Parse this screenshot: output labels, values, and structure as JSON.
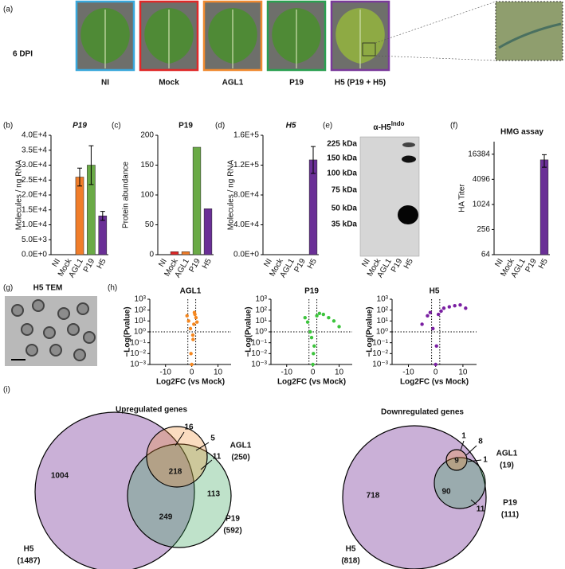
{
  "figure": {
    "panel_labels": [
      "(a)",
      "(b)",
      "(c)",
      "(d)",
      "(e)",
      "(f)",
      "(g)",
      "(h)",
      "(i)"
    ],
    "row_label": "6 DPI"
  },
  "photos": [
    {
      "label": "NI",
      "color": "#3aa8dc"
    },
    {
      "label": "Mock",
      "color": "#e02828"
    },
    {
      "label": "AGL1",
      "color": "#f08a30"
    },
    {
      "label": "P19",
      "color": "#2aa050"
    },
    {
      "label": "H5 (P19 + H5)",
      "color": "#7a3a9a"
    }
  ],
  "blot": {
    "title": "α-H5",
    "title_sup": "Indo",
    "markers": [
      "225 kDa",
      "150 kDa",
      "100 kDa",
      "75 kDa",
      "50 kDa",
      "35 kDa"
    ],
    "lanes": [
      "NI",
      "Mock",
      "AGL1",
      "P19",
      "H5"
    ]
  },
  "tem": {
    "title": "H5 TEM"
  },
  "chart_data": [
    {
      "type": "bar",
      "title": "P19",
      "title_italic": true,
      "ylabel": "Molecules / ng RNA",
      "categories": [
        "NI",
        "Mock",
        "AGL1",
        "P19",
        "H5"
      ],
      "values": [
        0,
        0,
        26000,
        30000,
        13000
      ],
      "errors": [
        null,
        null,
        3000,
        6500,
        1500
      ],
      "colors": [
        "#3aa8dc",
        "#e02828",
        "#f07d2a",
        "#6aaa46",
        "#6a2f96"
      ],
      "ylim": [
        0,
        40000
      ],
      "yticks": [
        {
          "value": 0,
          "label": "0.0E+0"
        },
        {
          "value": 5000,
          "label": "5.0E+3"
        },
        {
          "value": 10000,
          "label": "1.0E+4"
        },
        {
          "value": 15000,
          "label": "1.5E+4"
        },
        {
          "value": 20000,
          "label": "2.0E+4"
        },
        {
          "value": 25000,
          "label": "2.5E+4"
        },
        {
          "value": 30000,
          "label": "3.0E+4"
        },
        {
          "value": 35000,
          "label": "3.5E+4"
        },
        {
          "value": 40000,
          "label": "4.0E+4"
        }
      ]
    },
    {
      "type": "bar",
      "title": "P19",
      "title_italic": false,
      "ylabel": "Protein abundance",
      "categories": [
        "NI",
        "Mock",
        "AGL1",
        "P19",
        "H5"
      ],
      "values": [
        0,
        5,
        5,
        180,
        77
      ],
      "colors": [
        "#3aa8dc",
        "#e02828",
        "#f07d2a",
        "#6aaa46",
        "#6a2f96"
      ],
      "ylim": [
        0,
        200
      ],
      "yticks": [
        0,
        50,
        100,
        150,
        200
      ]
    },
    {
      "type": "bar",
      "title": "H5",
      "title_italic": true,
      "ylabel": "Molecules / ng RNA",
      "categories": [
        "NI",
        "Mock",
        "AGL1",
        "P19",
        "H5"
      ],
      "values": [
        0,
        0,
        0,
        0,
        127000
      ],
      "errors": [
        null,
        null,
        null,
        null,
        18000
      ],
      "colors": [
        "#3aa8dc",
        "#e02828",
        "#f07d2a",
        "#6aaa46",
        "#6a2f96"
      ],
      "ylim": [
        0,
        160000
      ],
      "yticks": [
        {
          "value": 0,
          "label": "0.0E+0"
        },
        {
          "value": 40000,
          "label": "4.0E+4"
        },
        {
          "value": 80000,
          "label": "8.0E+4"
        },
        {
          "value": 120000,
          "label": "1.2E+5"
        },
        {
          "value": 160000,
          "label": "1.6E+5"
        }
      ]
    },
    {
      "type": "bar",
      "title": "HMG assay",
      "title_italic": false,
      "ylabel": "HA Titer",
      "yscale": "log2",
      "categories": [
        "NI",
        "Mock",
        "AGL1",
        "P19",
        "H5"
      ],
      "values": [
        null,
        null,
        null,
        null,
        12000
      ],
      "errors": [
        null,
        null,
        null,
        null,
        4000
      ],
      "colors": [
        "#3aa8dc",
        "#e02828",
        "#f07d2a",
        "#6aaa46",
        "#6a2f96"
      ],
      "ylim": [
        64,
        32768
      ],
      "yticks": [
        64,
        256,
        1024,
        4096,
        16384
      ]
    },
    {
      "type": "scatter",
      "title": "AGL1",
      "xlabel": "Log2FC (vs Mock)",
      "ylabel": "−Log(Pvalue)",
      "color": "#f5871f",
      "x": [
        -1.8,
        -1.2,
        -0.5,
        0,
        0.4,
        0.8,
        1.2,
        1.6,
        2.0,
        -0.3,
        0.5,
        1.0
      ],
      "values": [
        30,
        10,
        2,
        0.001,
        0.5,
        5,
        40,
        20,
        8,
        0.01,
        0.2,
        60
      ],
      "xlim": [
        -16,
        15
      ],
      "xticks": [
        -10,
        0,
        10
      ],
      "ylim": [
        0.001,
        1000
      ],
      "yticks": [
        {
          "value": 1000,
          "label": "10³"
        },
        {
          "value": 100,
          "label": "10²"
        },
        {
          "value": 10,
          "label": "10¹"
        },
        {
          "value": 1,
          "label": "10⁰"
        },
        {
          "value": 0.1,
          "label": "10⁻¹"
        },
        {
          "value": 0.01,
          "label": "10⁻²"
        },
        {
          "value": 0.001,
          "label": "10⁻³"
        }
      ],
      "thresholds": {
        "x": [
          -1.5,
          1.5
        ],
        "y": 1
      }
    },
    {
      "type": "scatter",
      "title": "P19",
      "xlabel": "Log2FC (vs Mock)",
      "ylabel": "−Log(Pvalue)",
      "color": "#3cc43c",
      "x": [
        -3,
        -2,
        -1,
        0,
        0.5,
        1.5,
        2.5,
        4,
        6,
        8,
        10,
        0.2,
        -0.5
      ],
      "values": [
        20,
        8,
        1,
        0.001,
        0.05,
        30,
        50,
        40,
        20,
        10,
        3,
        0.01,
        0.3
      ],
      "xlim": [
        -16,
        15
      ],
      "xticks": [
        -10,
        0,
        10
      ],
      "ylim": [
        0.001,
        1000
      ],
      "yticks": [
        {
          "value": 1000,
          "label": "10³"
        },
        {
          "value": 100,
          "label": "10²"
        },
        {
          "value": 10,
          "label": "10¹"
        },
        {
          "value": 1,
          "label": "10⁰"
        },
        {
          "value": 0.1,
          "label": "10⁻¹"
        },
        {
          "value": 0.01,
          "label": "10⁻²"
        },
        {
          "value": 0.001,
          "label": "10⁻³"
        }
      ],
      "thresholds": {
        "x": [
          -1.5,
          1.5
        ],
        "y": 1
      }
    },
    {
      "type": "scatter",
      "title": "H5",
      "xlabel": "Log2FC (vs Mock)",
      "ylabel": "−Log(Pvalue)",
      "color": "#7a1fa2",
      "x": [
        -5,
        -3,
        -2,
        -1,
        0,
        1,
        2,
        3,
        5,
        7,
        9,
        11,
        0.3
      ],
      "values": [
        5,
        30,
        60,
        2,
        0.001,
        40,
        80,
        150,
        200,
        250,
        300,
        150,
        0.05
      ],
      "xlim": [
        -16,
        15
      ],
      "xticks": [
        -10,
        0,
        10
      ],
      "ylim": [
        0.001,
        1000
      ],
      "yticks": [
        {
          "value": 1000,
          "label": "10³"
        },
        {
          "value": 100,
          "label": "10²"
        },
        {
          "value": 10,
          "label": "10¹"
        },
        {
          "value": 1,
          "label": "10⁰"
        },
        {
          "value": 0.1,
          "label": "10⁻¹"
        },
        {
          "value": 0.01,
          "label": "10⁻²"
        },
        {
          "value": 0.001,
          "label": "10⁻³"
        }
      ],
      "thresholds": {
        "x": [
          -1.5,
          1.5
        ],
        "y": 1
      }
    }
  ],
  "venn": [
    {
      "title": "Upregulated genes",
      "sets": [
        {
          "name": "H5",
          "count": "(1487)",
          "color": "#7a3a9a"
        },
        {
          "name": "P19",
          "count": "(592)",
          "color": "#2aa050"
        },
        {
          "name": "AGL1",
          "count": "(250)",
          "color": "#f08a30"
        }
      ],
      "regions": [
        "1004",
        "218",
        "249",
        "113",
        "16",
        "5",
        "11"
      ]
    },
    {
      "title": "Downregulated genes",
      "sets": [
        {
          "name": "H5",
          "count": "(818)",
          "color": "#7a3a9a"
        },
        {
          "name": "P19",
          "count": "(111)",
          "color": "#2aa050"
        },
        {
          "name": "AGL1",
          "count": "(19)",
          "color": "#f08a30"
        }
      ],
      "regions": [
        "718",
        "90",
        "9",
        "1",
        "8",
        "1",
        "11"
      ]
    }
  ]
}
